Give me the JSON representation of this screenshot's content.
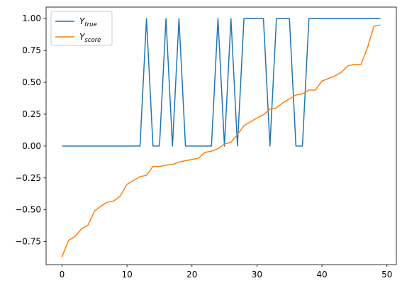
{
  "chart_data": {
    "type": "line",
    "title": "",
    "xlabel": "",
    "ylabel": "",
    "xlim": [
      -2.45,
      51.45
    ],
    "ylim": [
      -0.9302,
      1.0902
    ],
    "xticks": [
      0,
      10,
      20,
      30,
      40,
      50
    ],
    "xtick_labels": [
      "0",
      "10",
      "20",
      "30",
      "40",
      "50"
    ],
    "yticks": [
      -0.75,
      -0.5,
      -0.25,
      0.0,
      0.25,
      0.5,
      0.75,
      1.0
    ],
    "ytick_labels": [
      "−0.75",
      "−0.50",
      "−0.25",
      "0.00",
      "0.25",
      "0.50",
      "0.75",
      "1.00"
    ],
    "grid": false,
    "legend_position": "top-left",
    "x": [
      0,
      1,
      2,
      3,
      4,
      5,
      6,
      7,
      8,
      9,
      10,
      11,
      12,
      13,
      14,
      15,
      16,
      17,
      18,
      19,
      20,
      21,
      22,
      23,
      24,
      25,
      26,
      27,
      28,
      29,
      30,
      31,
      32,
      33,
      34,
      35,
      36,
      37,
      38,
      39,
      40,
      41,
      42,
      43,
      44,
      45,
      46,
      47,
      48,
      49
    ],
    "series": [
      {
        "name": "Y",
        "name_subscript": "true",
        "color": "#1f77b4",
        "values": [
          0,
          0,
          0,
          0,
          0,
          0,
          0,
          0,
          0,
          0,
          0,
          0,
          0,
          1,
          0,
          0,
          1,
          0,
          1,
          0,
          0,
          0,
          0,
          0,
          1,
          0,
          1,
          0,
          1,
          1,
          1,
          1,
          0,
          1,
          1,
          1,
          0,
          0,
          1,
          1,
          1,
          1,
          1,
          1,
          1,
          1,
          1,
          1,
          1,
          1
        ]
      },
      {
        "name": "Y",
        "name_subscript": "score",
        "color": "#ff7f0e",
        "values": [
          -0.87,
          -0.74,
          -0.71,
          -0.65,
          -0.62,
          -0.51,
          -0.47,
          -0.44,
          -0.43,
          -0.39,
          -0.3,
          -0.27,
          -0.24,
          -0.23,
          -0.16,
          -0.16,
          -0.15,
          -0.145,
          -0.125,
          -0.115,
          -0.105,
          -0.095,
          -0.05,
          -0.04,
          -0.02,
          0.015,
          0.03,
          0.09,
          0.16,
          0.19,
          0.22,
          0.245,
          0.29,
          0.3,
          0.34,
          0.37,
          0.4,
          0.41,
          0.44,
          0.44,
          0.51,
          0.53,
          0.55,
          0.58,
          0.63,
          0.64,
          0.64,
          0.77,
          0.94,
          0.95
        ]
      }
    ]
  }
}
